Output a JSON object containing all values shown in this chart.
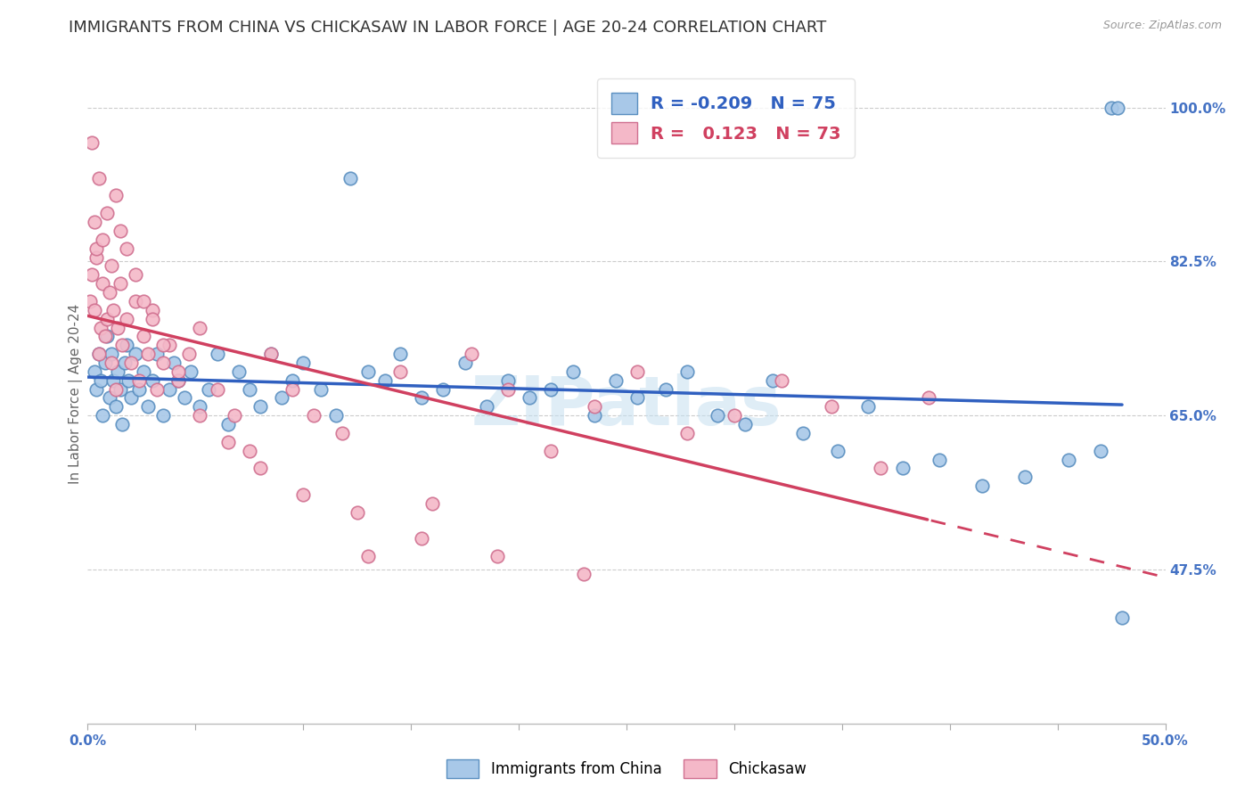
{
  "title": "IMMIGRANTS FROM CHINA VS CHICKASAW IN LABOR FORCE | AGE 20-24 CORRELATION CHART",
  "source": "Source: ZipAtlas.com",
  "ylabel": "In Labor Force | Age 20-24",
  "xlim": [
    0.0,
    0.5
  ],
  "ylim": [
    0.3,
    1.05
  ],
  "right_yticks": [
    0.475,
    0.65,
    0.825,
    1.0
  ],
  "right_yticklabels": [
    "47.5%",
    "65.0%",
    "82.5%",
    "100.0%"
  ],
  "blue_R": -0.209,
  "blue_N": 75,
  "pink_R": 0.123,
  "pink_N": 73,
  "blue_label": "Immigrants from China",
  "pink_label": "Chickasaw",
  "blue_color": "#a8c8e8",
  "pink_color": "#f4b8c8",
  "blue_edge": "#5a8fc0",
  "pink_edge": "#d07090",
  "trend_blue": "#3060c0",
  "trend_pink": "#d04060",
  "background_color": "#ffffff",
  "title_fontsize": 13,
  "axis_label_fontsize": 11,
  "tick_fontsize": 11,
  "watermark": "ZIPatlas",
  "blue_x": [
    0.003,
    0.004,
    0.005,
    0.006,
    0.007,
    0.008,
    0.009,
    0.01,
    0.011,
    0.012,
    0.013,
    0.014,
    0.015,
    0.016,
    0.017,
    0.018,
    0.019,
    0.02,
    0.022,
    0.024,
    0.026,
    0.028,
    0.03,
    0.032,
    0.035,
    0.038,
    0.04,
    0.042,
    0.045,
    0.048,
    0.052,
    0.056,
    0.06,
    0.065,
    0.07,
    0.075,
    0.08,
    0.085,
    0.09,
    0.095,
    0.1,
    0.108,
    0.115,
    0.122,
    0.13,
    0.138,
    0.145,
    0.155,
    0.165,
    0.175,
    0.185,
    0.195,
    0.205,
    0.215,
    0.225,
    0.235,
    0.245,
    0.255,
    0.268,
    0.278,
    0.292,
    0.305,
    0.318,
    0.332,
    0.348,
    0.362,
    0.378,
    0.395,
    0.415,
    0.435,
    0.455,
    0.47,
    0.475,
    0.478,
    0.48
  ],
  "blue_y": [
    0.7,
    0.68,
    0.72,
    0.69,
    0.65,
    0.71,
    0.74,
    0.67,
    0.72,
    0.69,
    0.66,
    0.7,
    0.68,
    0.64,
    0.71,
    0.73,
    0.69,
    0.67,
    0.72,
    0.68,
    0.7,
    0.66,
    0.69,
    0.72,
    0.65,
    0.68,
    0.71,
    0.69,
    0.67,
    0.7,
    0.66,
    0.68,
    0.72,
    0.64,
    0.7,
    0.68,
    0.66,
    0.72,
    0.67,
    0.69,
    0.71,
    0.68,
    0.65,
    0.92,
    0.7,
    0.69,
    0.72,
    0.67,
    0.68,
    0.71,
    0.66,
    0.69,
    0.67,
    0.68,
    0.7,
    0.65,
    0.69,
    0.67,
    0.68,
    0.7,
    0.65,
    0.64,
    0.69,
    0.63,
    0.61,
    0.66,
    0.59,
    0.6,
    0.57,
    0.58,
    0.6,
    0.61,
    1.0,
    1.0,
    0.42
  ],
  "pink_x": [
    0.001,
    0.002,
    0.003,
    0.004,
    0.005,
    0.006,
    0.007,
    0.008,
    0.009,
    0.01,
    0.011,
    0.012,
    0.013,
    0.014,
    0.015,
    0.016,
    0.018,
    0.02,
    0.022,
    0.024,
    0.026,
    0.028,
    0.03,
    0.032,
    0.035,
    0.038,
    0.042,
    0.047,
    0.052,
    0.06,
    0.068,
    0.075,
    0.085,
    0.095,
    0.105,
    0.118,
    0.13,
    0.145,
    0.16,
    0.178,
    0.195,
    0.215,
    0.235,
    0.255,
    0.278,
    0.3,
    0.322,
    0.345,
    0.368,
    0.39,
    0.002,
    0.003,
    0.004,
    0.005,
    0.007,
    0.009,
    0.011,
    0.013,
    0.015,
    0.018,
    0.022,
    0.026,
    0.03,
    0.035,
    0.042,
    0.052,
    0.065,
    0.08,
    0.1,
    0.125,
    0.155,
    0.19,
    0.23
  ],
  "pink_y": [
    0.78,
    0.81,
    0.77,
    0.83,
    0.72,
    0.75,
    0.8,
    0.74,
    0.76,
    0.79,
    0.71,
    0.77,
    0.68,
    0.75,
    0.8,
    0.73,
    0.76,
    0.71,
    0.78,
    0.69,
    0.74,
    0.72,
    0.77,
    0.68,
    0.71,
    0.73,
    0.69,
    0.72,
    0.75,
    0.68,
    0.65,
    0.61,
    0.72,
    0.68,
    0.65,
    0.63,
    0.49,
    0.7,
    0.55,
    0.72,
    0.68,
    0.61,
    0.66,
    0.7,
    0.63,
    0.65,
    0.69,
    0.66,
    0.59,
    0.67,
    0.96,
    0.87,
    0.84,
    0.92,
    0.85,
    0.88,
    0.82,
    0.9,
    0.86,
    0.84,
    0.81,
    0.78,
    0.76,
    0.73,
    0.7,
    0.65,
    0.62,
    0.59,
    0.56,
    0.54,
    0.51,
    0.49,
    0.47
  ]
}
